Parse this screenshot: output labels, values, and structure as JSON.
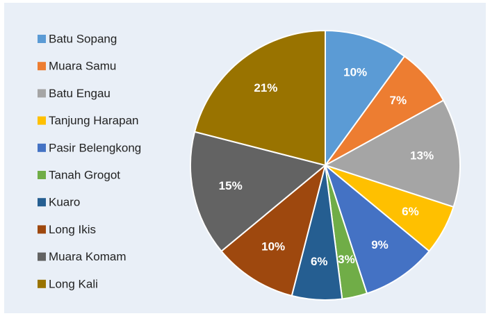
{
  "chart_data": {
    "type": "pie",
    "categories": [
      "Batu Sopang",
      "Muara Samu",
      "Batu Engau",
      "Tanjung Harapan",
      "Pasir Belengkong",
      "Tanah Grogot",
      "Kuaro",
      "Long Ikis",
      "Muara Komam",
      "Long Kali"
    ],
    "values": [
      10,
      7,
      13,
      6,
      9,
      3,
      6,
      10,
      15,
      21
    ],
    "value_labels": [
      "10%",
      "7%",
      "13%",
      "6%",
      "9%",
      "3%",
      "6%",
      "10%",
      "15%",
      "21%"
    ],
    "colors": [
      "#5b9bd5",
      "#ed7d31",
      "#a5a5a5",
      "#ffc000",
      "#4472c4",
      "#70ad47",
      "#255e91",
      "#9e480e",
      "#636363",
      "#997300"
    ],
    "legend": "left"
  }
}
